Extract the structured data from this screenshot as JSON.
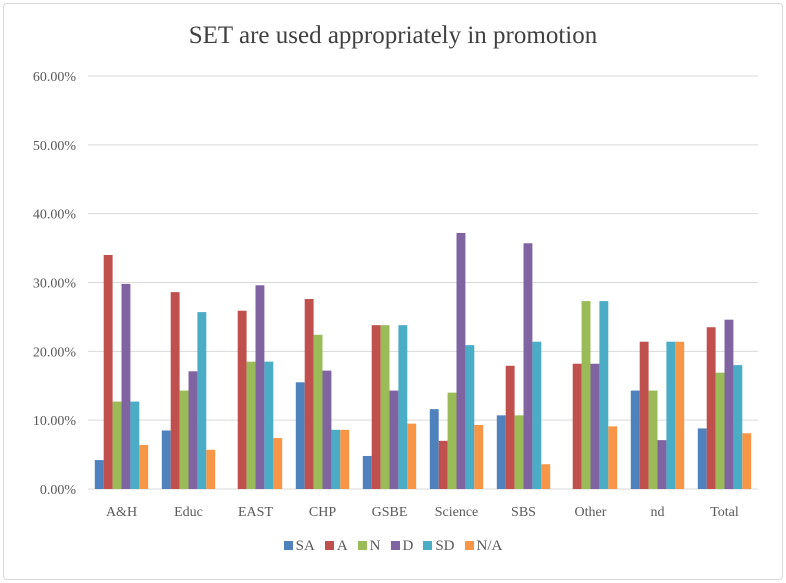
{
  "chart_data": {
    "type": "bar",
    "title": "SET are used appropriately in promotion",
    "categories": [
      "A&H",
      "Educ",
      "EAST",
      "CHP",
      "GSBE",
      "Science",
      "SBS",
      "Other",
      "nd",
      "Total"
    ],
    "ylim": [
      0,
      60
    ],
    "yticks": [
      "0.00%",
      "10.00%",
      "20.00%",
      "30.00%",
      "40.00%",
      "50.00%",
      "60.00%"
    ],
    "grid": true,
    "legend_position": "bottom",
    "series": [
      {
        "name": "SA",
        "color": "#4f81bd",
        "values": [
          4.2,
          8.5,
          0,
          15.5,
          4.8,
          11.6,
          10.7,
          0,
          14.3,
          8.8
        ]
      },
      {
        "name": "A",
        "color": "#c0504d",
        "values": [
          34.0,
          28.6,
          25.9,
          27.6,
          23.8,
          7.0,
          17.9,
          18.2,
          21.4,
          23.5
        ]
      },
      {
        "name": "N",
        "color": "#9bbb59",
        "values": [
          12.7,
          14.3,
          18.5,
          22.4,
          23.8,
          14.0,
          10.7,
          27.3,
          14.3,
          16.9
        ]
      },
      {
        "name": "D",
        "color": "#8064a2",
        "values": [
          29.8,
          17.1,
          29.6,
          17.2,
          14.3,
          37.2,
          35.7,
          18.2,
          7.1,
          24.6
        ]
      },
      {
        "name": "SD",
        "color": "#4bacc6",
        "values": [
          12.7,
          25.7,
          18.5,
          8.6,
          23.8,
          20.9,
          21.4,
          27.3,
          21.4,
          18.0
        ]
      },
      {
        "name": "N/A",
        "color": "#f79646",
        "values": [
          6.4,
          5.7,
          7.4,
          8.6,
          9.5,
          9.3,
          3.6,
          9.1,
          21.4,
          8.1
        ]
      }
    ]
  }
}
